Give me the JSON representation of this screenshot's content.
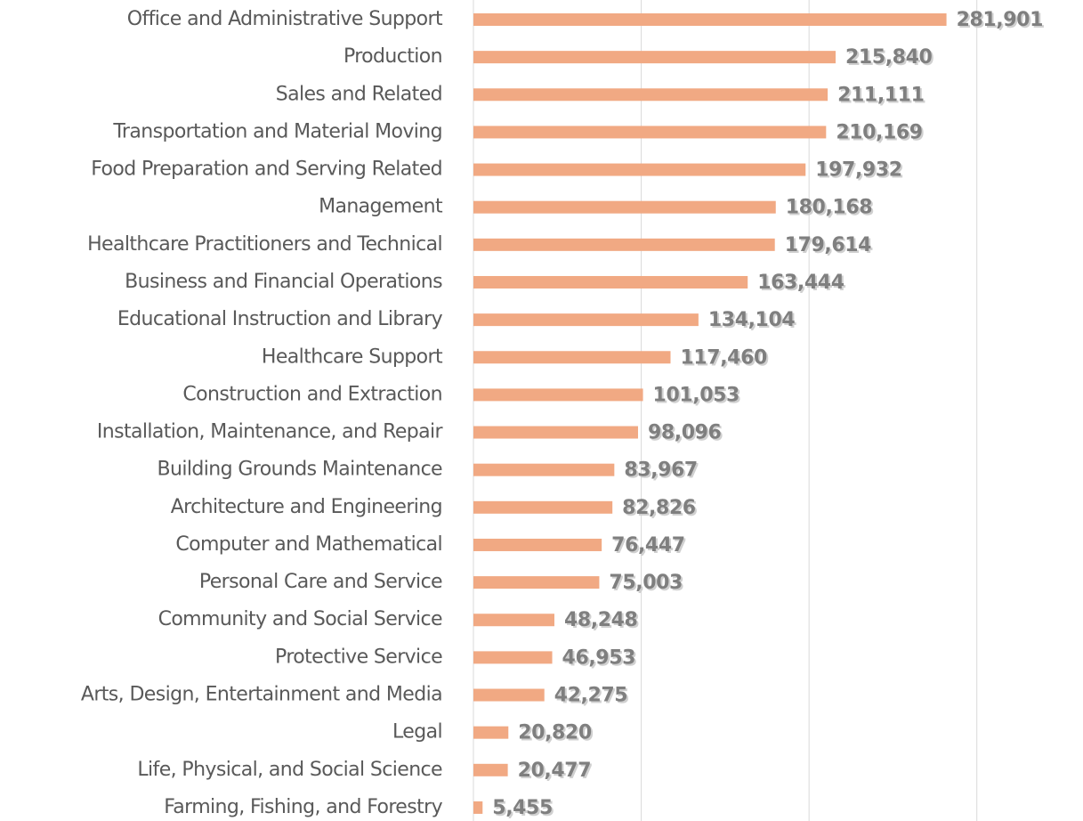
{
  "chart_data": {
    "type": "bar",
    "orientation": "horizontal",
    "categories": [
      "Office and Administrative Support",
      "Production",
      "Sales and Related",
      "Transportation and Material Moving",
      "Food Preparation and Serving Related",
      "Management",
      "Healthcare Practitioners and Technical",
      "Business and Financial Operations",
      "Educational Instruction and Library",
      "Healthcare Support",
      "Construction and Extraction",
      "Installation, Maintenance, and Repair",
      "Building Grounds Maintenance",
      "Architecture and Engineering",
      "Computer and Mathematical",
      "Personal Care and Service",
      "Community and Social Service",
      "Protective Service",
      "Arts, Design, Entertainment and Media",
      "Legal",
      "Life, Physical, and Social Science",
      "Farming, Fishing, and Forestry"
    ],
    "values": [
      281901,
      215840,
      211111,
      210169,
      197932,
      180168,
      179614,
      163444,
      134104,
      117460,
      101053,
      98096,
      83967,
      82826,
      76447,
      75003,
      48248,
      46953,
      42275,
      20820,
      20477,
      5455
    ],
    "value_labels": [
      "281,901",
      "215,840",
      "211,111",
      "210,169",
      "197,932",
      "180,168",
      "179,614",
      "163,444",
      "134,104",
      "117,460",
      "101,053",
      "98,096",
      "83,967",
      "82,826",
      "76,447",
      "75,003",
      "48,248",
      "46,953",
      "42,275",
      "20,820",
      "20,477",
      "5,455"
    ],
    "color": "#f1a983",
    "xlim": [
      0,
      350000
    ],
    "xticks": [
      0,
      100000,
      200000,
      300000
    ],
    "grid": true
  }
}
